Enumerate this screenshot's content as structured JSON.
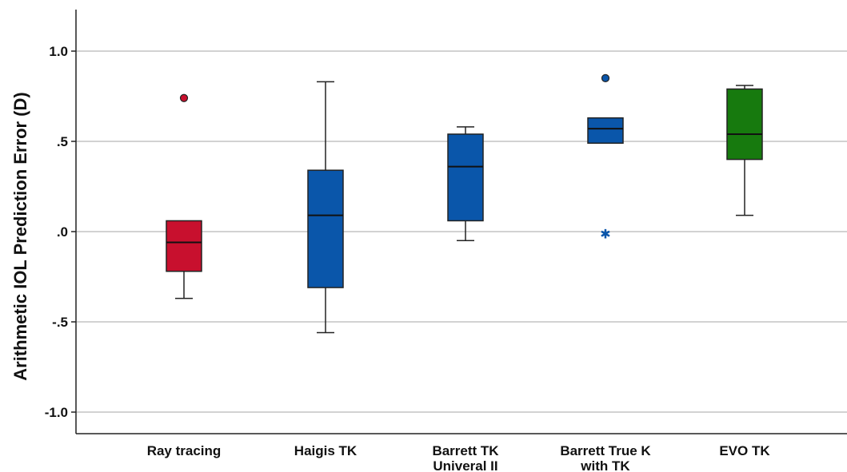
{
  "chart_data": {
    "type": "boxplot",
    "ylabel": "Arithmetic IOL Prediction Error (D)",
    "ylim": [
      -1.2,
      1.23
    ],
    "yticks": [
      {
        "value": 1.0,
        "label": "1.0"
      },
      {
        "value": 0.5,
        "label": ".5"
      },
      {
        "value": 0.0,
        "label": ".0"
      },
      {
        "value": -0.5,
        "label": "-.5"
      },
      {
        "value": -1.0,
        "label": "-1.0"
      }
    ],
    "grid": true,
    "categories": [
      {
        "label_lines": [
          "Ray tracing"
        ],
        "color": "#c8102e",
        "min": -0.37,
        "q1": -0.22,
        "median": -0.06,
        "q3": 0.06,
        "max": 0.06,
        "outliers": [
          {
            "value": 0.74,
            "marker": "circle"
          }
        ]
      },
      {
        "label_lines": [
          "Haigis TK"
        ],
        "color": "#0a56aa",
        "min": -0.56,
        "q1": -0.31,
        "median": 0.09,
        "q3": 0.34,
        "max": 0.83,
        "outliers": []
      },
      {
        "label_lines": [
          "Barrett TK",
          "Univeral II"
        ],
        "color": "#0a56aa",
        "min": -0.05,
        "q1": 0.06,
        "median": 0.36,
        "q3": 0.54,
        "max": 0.58,
        "outliers": []
      },
      {
        "label_lines": [
          "Barrett True K",
          "with TK"
        ],
        "color": "#0a56aa",
        "min": 0.49,
        "q1": 0.49,
        "median": 0.57,
        "q3": 0.63,
        "max": 0.63,
        "outliers": [
          {
            "value": 0.85,
            "marker": "circle"
          },
          {
            "value": -0.01,
            "marker": "star"
          }
        ]
      },
      {
        "label_lines": [
          "EVO TK"
        ],
        "color": "#177a0e",
        "min": 0.09,
        "q1": 0.4,
        "median": 0.54,
        "q3": 0.79,
        "max": 0.81,
        "outliers": []
      }
    ]
  }
}
